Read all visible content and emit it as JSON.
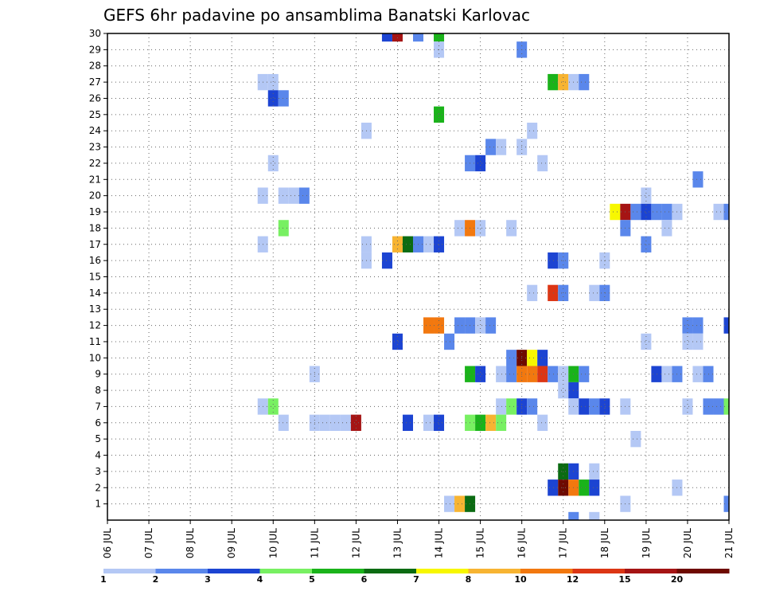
{
  "chart_data": {
    "type": "heatmap",
    "title": "GEFS 6hr padavine po ansamblima Banatski Karlovac",
    "xlabel": "",
    "ylabel": "",
    "x_ticks": [
      "06 JUL",
      "07 JUL",
      "08 JUL",
      "09 JUL",
      "10 JUL",
      "11 JUL",
      "12 JUL",
      "13 JUL",
      "14 JUL",
      "15 JUL",
      "16 JUL",
      "17 JUL",
      "18 JUL",
      "19 JUL",
      "20 JUL",
      "21 JUL"
    ],
    "y_ticks": [
      "1",
      "2",
      "3",
      "4",
      "5",
      "6",
      "7",
      "8",
      "9",
      "10",
      "11",
      "12",
      "13",
      "14",
      "15",
      "16",
      "17",
      "18",
      "19",
      "20",
      "21",
      "22",
      "23",
      "24",
      "25",
      "26",
      "27",
      "28",
      "29",
      "30"
    ],
    "xlim_days": [
      6,
      21
    ],
    "ylim": [
      0,
      30
    ],
    "step_days": 0.25,
    "grid": true,
    "legend_position": "bottom",
    "legend": {
      "levels": [
        "1",
        "2",
        "3",
        "4",
        "5",
        "6",
        "7",
        "8",
        "10",
        "12",
        "15",
        "20"
      ],
      "colors": [
        "#b4c8f5",
        "#5a87eb",
        "#1c44d2",
        "#78f062",
        "#1ab31a",
        "#0b6b12",
        "#f7f700",
        "#f7b432",
        "#f2780f",
        "#dc3614",
        "#a51414",
        "#6e0a00"
      ]
    },
    "cells": [
      {
        "member": 30,
        "day": 12.75,
        "level": 3
      },
      {
        "member": 30,
        "day": 13.0,
        "level": 11
      },
      {
        "member": 30,
        "day": 13.5,
        "level": 2
      },
      {
        "member": 30,
        "day": 14.0,
        "level": 5
      },
      {
        "member": 29,
        "day": 14.0,
        "level": 1
      },
      {
        "member": 29,
        "day": 16.0,
        "level": 2
      },
      {
        "member": 27,
        "day": 9.75,
        "level": 1
      },
      {
        "member": 27,
        "day": 10.0,
        "level": 1
      },
      {
        "member": 27,
        "day": 16.75,
        "level": 5
      },
      {
        "member": 27,
        "day": 17.0,
        "level": 8
      },
      {
        "member": 27,
        "day": 17.25,
        "level": 1
      },
      {
        "member": 27,
        "day": 17.5,
        "level": 2
      },
      {
        "member": 26,
        "day": 10.0,
        "level": 3
      },
      {
        "member": 26,
        "day": 10.25,
        "level": 2
      },
      {
        "member": 25,
        "day": 14.0,
        "level": 5
      },
      {
        "member": 24,
        "day": 12.25,
        "level": 1
      },
      {
        "member": 24,
        "day": 16.25,
        "level": 1
      },
      {
        "member": 23,
        "day": 15.25,
        "level": 2
      },
      {
        "member": 23,
        "day": 15.5,
        "level": 1
      },
      {
        "member": 23,
        "day": 16.0,
        "level": 1
      },
      {
        "member": 22,
        "day": 10.0,
        "level": 1
      },
      {
        "member": 22,
        "day": 14.75,
        "level": 2
      },
      {
        "member": 22,
        "day": 15.0,
        "level": 3
      },
      {
        "member": 22,
        "day": 16.5,
        "level": 1
      },
      {
        "member": 21,
        "day": 20.25,
        "level": 2
      },
      {
        "member": 20,
        "day": 9.75,
        "level": 1
      },
      {
        "member": 20,
        "day": 10.25,
        "level": 1
      },
      {
        "member": 20,
        "day": 10.5,
        "level": 1
      },
      {
        "member": 20,
        "day": 10.75,
        "level": 2
      },
      {
        "member": 20,
        "day": 19.0,
        "level": 1
      },
      {
        "member": 19,
        "day": 18.25,
        "level": 7
      },
      {
        "member": 19,
        "day": 18.5,
        "level": 11
      },
      {
        "member": 19,
        "day": 18.75,
        "level": 2
      },
      {
        "member": 19,
        "day": 19.0,
        "level": 3
      },
      {
        "member": 19,
        "day": 19.25,
        "level": 2
      },
      {
        "member": 19,
        "day": 19.5,
        "level": 2
      },
      {
        "member": 19,
        "day": 19.75,
        "level": 1
      },
      {
        "member": 19,
        "day": 20.75,
        "level": 1
      },
      {
        "member": 19,
        "day": 21.0,
        "level": 2
      },
      {
        "member": 18,
        "day": 10.25,
        "level": 4
      },
      {
        "member": 18,
        "day": 14.5,
        "level": 1
      },
      {
        "member": 18,
        "day": 14.75,
        "level": 9
      },
      {
        "member": 18,
        "day": 15.0,
        "level": 1
      },
      {
        "member": 18,
        "day": 15.75,
        "level": 1
      },
      {
        "member": 18,
        "day": 18.5,
        "level": 2
      },
      {
        "member": 18,
        "day": 19.5,
        "level": 1
      },
      {
        "member": 17,
        "day": 9.75,
        "level": 1
      },
      {
        "member": 17,
        "day": 12.25,
        "level": 1
      },
      {
        "member": 17,
        "day": 13.0,
        "level": 8
      },
      {
        "member": 17,
        "day": 13.25,
        "level": 6
      },
      {
        "member": 17,
        "day": 13.5,
        "level": 2
      },
      {
        "member": 17,
        "day": 13.75,
        "level": 1
      },
      {
        "member": 17,
        "day": 14.0,
        "level": 3
      },
      {
        "member": 17,
        "day": 19.0,
        "level": 2
      },
      {
        "member": 16,
        "day": 12.25,
        "level": 1
      },
      {
        "member": 16,
        "day": 12.75,
        "level": 3
      },
      {
        "member": 16,
        "day": 16.75,
        "level": 3
      },
      {
        "member": 16,
        "day": 17.0,
        "level": 2
      },
      {
        "member": 16,
        "day": 18.0,
        "level": 1
      },
      {
        "member": 14,
        "day": 16.25,
        "level": 1
      },
      {
        "member": 14,
        "day": 16.75,
        "level": 10
      },
      {
        "member": 14,
        "day": 17.0,
        "level": 2
      },
      {
        "member": 14,
        "day": 17.75,
        "level": 1
      },
      {
        "member": 14,
        "day": 18.0,
        "level": 2
      },
      {
        "member": 12,
        "day": 13.75,
        "level": 9
      },
      {
        "member": 12,
        "day": 14.0,
        "level": 9
      },
      {
        "member": 12,
        "day": 14.5,
        "level": 2
      },
      {
        "member": 12,
        "day": 14.75,
        "level": 2
      },
      {
        "member": 12,
        "day": 15.0,
        "level": 1
      },
      {
        "member": 12,
        "day": 15.25,
        "level": 2
      },
      {
        "member": 12,
        "day": 20.0,
        "level": 2
      },
      {
        "member": 12,
        "day": 20.25,
        "level": 2
      },
      {
        "member": 12,
        "day": 21.0,
        "level": 3
      },
      {
        "member": 11,
        "day": 13.0,
        "level": 3
      },
      {
        "member": 11,
        "day": 14.25,
        "level": 2
      },
      {
        "member": 11,
        "day": 19.0,
        "level": 1
      },
      {
        "member": 11,
        "day": 20.0,
        "level": 1
      },
      {
        "member": 11,
        "day": 20.25,
        "level": 1
      },
      {
        "member": 10,
        "day": 15.75,
        "level": 2
      },
      {
        "member": 10,
        "day": 16.0,
        "level": 12
      },
      {
        "member": 10,
        "day": 16.25,
        "level": 7
      },
      {
        "member": 10,
        "day": 16.5,
        "level": 3
      },
      {
        "member": 9,
        "day": 11.0,
        "level": 1
      },
      {
        "member": 9,
        "day": 14.75,
        "level": 5
      },
      {
        "member": 9,
        "day": 15.0,
        "level": 3
      },
      {
        "member": 9,
        "day": 15.5,
        "level": 1
      },
      {
        "member": 9,
        "day": 15.75,
        "level": 2
      },
      {
        "member": 9,
        "day": 16.0,
        "level": 9
      },
      {
        "member": 9,
        "day": 16.25,
        "level": 9
      },
      {
        "member": 9,
        "day": 16.5,
        "level": 10
      },
      {
        "member": 9,
        "day": 16.75,
        "level": 2
      },
      {
        "member": 9,
        "day": 17.0,
        "level": 1
      },
      {
        "member": 9,
        "day": 17.25,
        "level": 5
      },
      {
        "member": 9,
        "day": 17.5,
        "level": 2
      },
      {
        "member": 9,
        "day": 19.25,
        "level": 3
      },
      {
        "member": 9,
        "day": 19.5,
        "level": 1
      },
      {
        "member": 9,
        "day": 19.75,
        "level": 2
      },
      {
        "member": 9,
        "day": 20.25,
        "level": 1
      },
      {
        "member": 9,
        "day": 20.5,
        "level": 2
      },
      {
        "member": 8,
        "day": 17.0,
        "level": 1
      },
      {
        "member": 8,
        "day": 17.25,
        "level": 3
      },
      {
        "member": 7,
        "day": 9.75,
        "level": 1
      },
      {
        "member": 7,
        "day": 10.0,
        "level": 4
      },
      {
        "member": 7,
        "day": 15.5,
        "level": 1
      },
      {
        "member": 7,
        "day": 15.75,
        "level": 4
      },
      {
        "member": 7,
        "day": 16.0,
        "level": 3
      },
      {
        "member": 7,
        "day": 16.25,
        "level": 2
      },
      {
        "member": 7,
        "day": 17.25,
        "level": 1
      },
      {
        "member": 7,
        "day": 17.5,
        "level": 3
      },
      {
        "member": 7,
        "day": 17.75,
        "level": 2
      },
      {
        "member": 7,
        "day": 18.0,
        "level": 3
      },
      {
        "member": 7,
        "day": 18.5,
        "level": 1
      },
      {
        "member": 7,
        "day": 20.0,
        "level": 1
      },
      {
        "member": 7,
        "day": 20.5,
        "level": 2
      },
      {
        "member": 7,
        "day": 20.75,
        "level": 2
      },
      {
        "member": 7,
        "day": 21.0,
        "level": 4
      },
      {
        "member": 6,
        "day": 10.25,
        "level": 1
      },
      {
        "member": 6,
        "day": 11.0,
        "level": 1
      },
      {
        "member": 6,
        "day": 11.25,
        "level": 1
      },
      {
        "member": 6,
        "day": 11.5,
        "level": 1
      },
      {
        "member": 6,
        "day": 11.75,
        "level": 1
      },
      {
        "member": 6,
        "day": 12.0,
        "level": 11
      },
      {
        "member": 6,
        "day": 13.25,
        "level": 3
      },
      {
        "member": 6,
        "day": 13.75,
        "level": 1
      },
      {
        "member": 6,
        "day": 14.0,
        "level": 3
      },
      {
        "member": 6,
        "day": 14.75,
        "level": 4
      },
      {
        "member": 6,
        "day": 15.0,
        "level": 5
      },
      {
        "member": 6,
        "day": 15.25,
        "level": 8
      },
      {
        "member": 6,
        "day": 15.5,
        "level": 4
      },
      {
        "member": 6,
        "day": 16.5,
        "level": 1
      },
      {
        "member": 5,
        "day": 18.75,
        "level": 1
      },
      {
        "member": 3,
        "day": 17.0,
        "level": 6
      },
      {
        "member": 3,
        "day": 17.25,
        "level": 3
      },
      {
        "member": 3,
        "day": 17.75,
        "level": 1
      },
      {
        "member": 2,
        "day": 16.75,
        "level": 3
      },
      {
        "member": 2,
        "day": 17.0,
        "level": 12
      },
      {
        "member": 2,
        "day": 17.25,
        "level": 9
      },
      {
        "member": 2,
        "day": 17.5,
        "level": 5
      },
      {
        "member": 2,
        "day": 17.75,
        "level": 3
      },
      {
        "member": 2,
        "day": 19.75,
        "level": 1
      },
      {
        "member": 1,
        "day": 14.25,
        "level": 1
      },
      {
        "member": 1,
        "day": 14.5,
        "level": 8
      },
      {
        "member": 1,
        "day": 14.75,
        "level": 6
      },
      {
        "member": 1,
        "day": 18.5,
        "level": 1
      },
      {
        "member": 1,
        "day": 21.0,
        "level": 2
      },
      {
        "member": 0,
        "day": 17.25,
        "level": 2
      },
      {
        "member": 0,
        "day": 17.75,
        "level": 1
      }
    ]
  }
}
